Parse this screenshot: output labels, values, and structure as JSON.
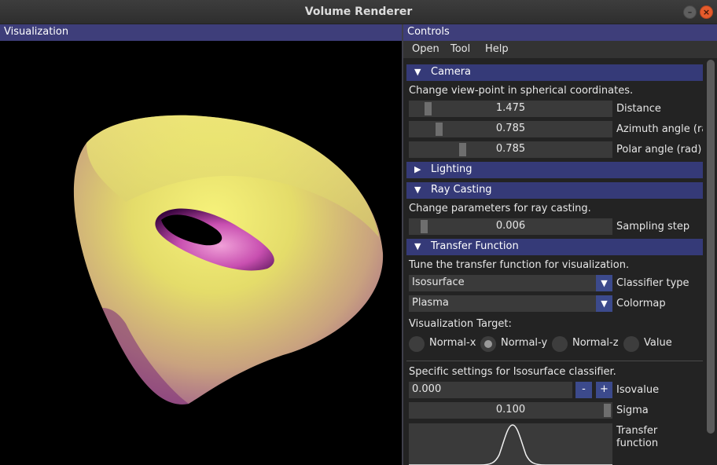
{
  "window": {
    "title": "Volume Renderer"
  },
  "visualization_panel": {
    "title": "Visualization"
  },
  "controls_panel": {
    "title": "Controls"
  },
  "menu": [
    "Open",
    "Tool",
    "Help"
  ],
  "camera": {
    "header": "Camera",
    "description": "Change view-point in spherical coordinates.",
    "distance": {
      "value": "1.475",
      "label": "Distance"
    },
    "azimuth": {
      "value": "0.785",
      "label": "Azimuth angle (ra"
    },
    "polar": {
      "value": "0.785",
      "label": "Polar angle (rad)"
    }
  },
  "lighting": {
    "header": "Lighting"
  },
  "ray_casting": {
    "header": "Ray Casting",
    "description": "Change parameters for ray casting.",
    "sampling_step": {
      "value": "0.006",
      "label": "Sampling step"
    }
  },
  "transfer_function": {
    "header": "Transfer Function",
    "description": "Tune the transfer function for visualization.",
    "classifier": {
      "value": "Isosurface",
      "label": "Classifier type"
    },
    "colormap": {
      "value": "Plasma",
      "label": "Colormap"
    },
    "target_label": "Visualization Target:",
    "targets": [
      "Normal-x",
      "Normal-y",
      "Normal-z",
      "Value"
    ],
    "selected_target": "Normal-y",
    "specific_label": "Specific settings for Isosurface classifier.",
    "isovalue": {
      "value": "0.000",
      "label": "Isovalue",
      "minus": "-",
      "plus": "+"
    },
    "sigma": {
      "value": "0.100",
      "label": "Sigma"
    },
    "tf_label_line1": "Transfer",
    "tf_label_line2": "function"
  },
  "colors": {
    "header_bg": "#3e3e7a",
    "section_bg": "#353a78",
    "accent": "#3c4a8c",
    "close_btn": "#e55b2c"
  },
  "icons": [
    "minimize-icon",
    "close-icon",
    "collapse-triangle-icon",
    "expand-triangle-icon",
    "dropdown-arrow-icon"
  ]
}
